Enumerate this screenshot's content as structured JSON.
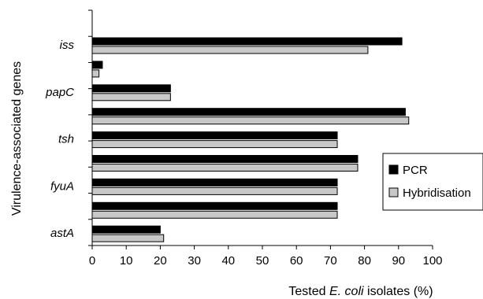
{
  "chart_data": {
    "type": "bar",
    "orientation": "horizontal",
    "categories": [
      "iss",
      "",
      "papC",
      "",
      "tsh",
      "",
      "fyuA",
      "",
      "astA"
    ],
    "series": [
      {
        "name": "PCR",
        "color": "#000000",
        "values": [
          91,
          3,
          23,
          92,
          72,
          78,
          72,
          72,
          20
        ]
      },
      {
        "name": "Hybridisation",
        "color": "#c8c8c8",
        "values": [
          81,
          2,
          23,
          93,
          72,
          78,
          72,
          72,
          21
        ]
      }
    ],
    "xlabel": {
      "prefix": "Tested ",
      "italic": "E. coli",
      "suffix": " isolates (%)"
    },
    "ylabel": "Virulence-associated genes",
    "xlim": [
      0,
      100
    ],
    "xticks": [
      "0",
      "10",
      "20",
      "30",
      "40",
      "50",
      "60",
      "70",
      "80",
      "90",
      "100"
    ],
    "legend": {
      "placement": "right",
      "entries": [
        "PCR",
        "Hybridisation"
      ]
    },
    "grid": false
  }
}
